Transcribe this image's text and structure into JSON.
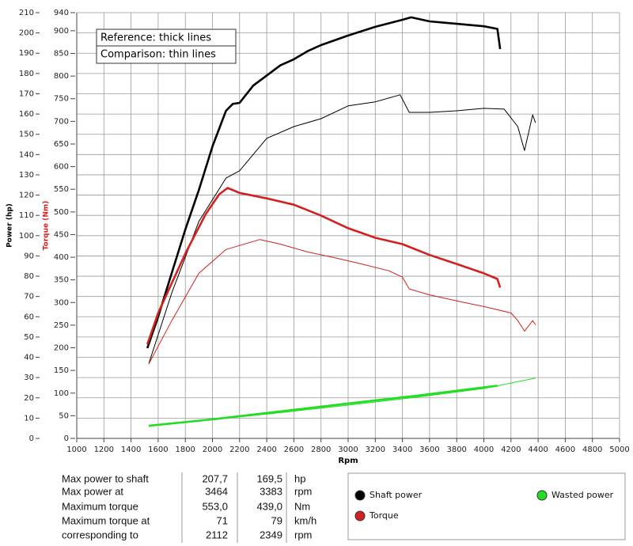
{
  "chart_data": {
    "type": "line",
    "ylabel": "Power (hp)",
    "y2label": "Torque (Nm)",
    "xlabel": "Rpm",
    "annotations": [
      "Reference: thick lines",
      "Comparison: thin lines"
    ],
    "xlim": [
      1000,
      5000
    ],
    "xticks": [
      1000,
      1200,
      1400,
      1600,
      1800,
      2000,
      2200,
      2400,
      2600,
      2800,
      3000,
      3200,
      3400,
      3600,
      3800,
      4000,
      4200,
      4400,
      4600,
      4800,
      5000
    ],
    "ylim": [
      0,
      210
    ],
    "yticks": [
      0,
      10,
      20,
      30,
      40,
      50,
      60,
      70,
      80,
      90,
      100,
      110,
      120,
      130,
      140,
      150,
      160,
      170,
      180,
      190,
      200,
      210
    ],
    "y2lim": [
      0,
      940
    ],
    "y2ticks": [
      0,
      50,
      100,
      150,
      200,
      250,
      300,
      350,
      400,
      450,
      500,
      550,
      600,
      650,
      700,
      750,
      800,
      850,
      900,
      940
    ],
    "grid": true,
    "series": [
      {
        "name": "Shaft power",
        "color": "#000000",
        "axis": "y",
        "reference": {
          "x": [
            1520,
            1600,
            1700,
            1800,
            1900,
            2000,
            2100,
            2150,
            2200,
            2300,
            2400,
            2500,
            2600,
            2700,
            2800,
            3000,
            3200,
            3400,
            3464,
            3600,
            3800,
            4000,
            4100,
            4120
          ],
          "values": [
            44.5,
            60,
            81.6,
            103,
            122.5,
            144,
            161.6,
            165,
            165.5,
            174,
            179,
            184,
            187,
            191,
            194,
            198.7,
            203,
            206.5,
            207.7,
            205.7,
            204.5,
            203.3,
            202,
            192
          ]
        },
        "comparison": {
          "x": [
            1530,
            1700,
            1900,
            2100,
            2200,
            2400,
            2600,
            2800,
            3000,
            3200,
            3383,
            3450,
            3600,
            3800,
            4000,
            4150,
            4250,
            4300,
            4360,
            4380
          ],
          "values": [
            36.7,
            71.8,
            107,
            128.4,
            132,
            148,
            153.8,
            157.7,
            164,
            166,
            169.5,
            160.8,
            160.8,
            161.6,
            162.8,
            162.4,
            153.8,
            142,
            159.6,
            155.7
          ]
        }
      },
      {
        "name": "Torque",
        "color": "#d42020",
        "axis": "y2",
        "reference": {
          "x": [
            1520,
            1600,
            1800,
            1950,
            2050,
            2112,
            2200,
            2400,
            2600,
            2800,
            3000,
            3200,
            3400,
            3600,
            3800,
            4000,
            4100,
            4120
          ],
          "values": [
            207.5,
            277,
            408,
            495,
            539,
            553,
            542,
            530,
            516,
            492,
            464,
            443,
            429,
            405,
            385,
            364.5,
            352,
            333
          ]
        },
        "comparison": {
          "x": [
            1530,
            1700,
            1900,
            2100,
            2349,
            2500,
            2700,
            2900,
            3100,
            3300,
            3400,
            3450,
            3600,
            3800,
            4000,
            4200,
            4250,
            4300,
            4360,
            4380
          ],
          "values": [
            164,
            260,
            364.5,
            417,
            439,
            429,
            411.6,
            399,
            385,
            370,
            356,
            330,
            317,
            303.5,
            291,
            277,
            260,
            237,
            260,
            251
          ]
        }
      },
      {
        "name": "Wasted power",
        "color": "#22dd22",
        "axis": "y",
        "reference": {
          "x": [
            1530,
            2000,
            2500,
            3000,
            3500,
            4100
          ],
          "values": [
            6.2,
            9.4,
            13.3,
            17.2,
            21,
            26
          ]
        },
        "comparison": {
          "x": [
            1530,
            2000,
            2500,
            3000,
            3500,
            4000,
            4380
          ],
          "values": [
            6.2,
            9.2,
            12.7,
            16.4,
            20.3,
            24.6,
            29.7
          ]
        }
      }
    ]
  },
  "table": {
    "rows": [
      [
        "Max power to shaft",
        "207,7",
        "169,5",
        "hp"
      ],
      [
        "Max power at",
        "3464",
        "3383",
        "rpm"
      ],
      [
        "Maximum torque",
        "553,0",
        "439,0",
        "Nm"
      ],
      [
        "Maximum torque at",
        "71",
        "79",
        "km/h"
      ],
      [
        "corresponding to",
        "2112",
        "2349",
        "rpm"
      ]
    ]
  }
}
